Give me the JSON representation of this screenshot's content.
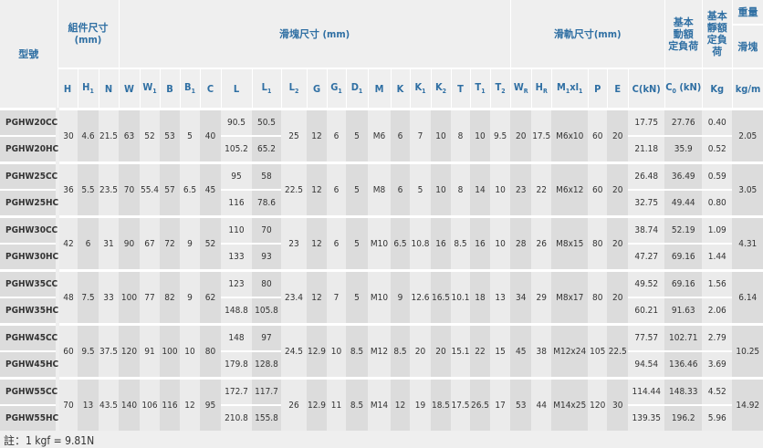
{
  "header": {
    "model": "型號",
    "assembly": [
      "組件尺寸",
      "(mm)"
    ],
    "block": "滑塊尺寸 (mm)",
    "rail": "滑軌尺寸(mm)",
    "dynamic_load": [
      "基本",
      "動額",
      "定負荷"
    ],
    "static_load": [
      "基本",
      "靜額",
      "定負荷"
    ],
    "weight": "重量",
    "weight_block": "滑塊",
    "weight_rail": "滑軌",
    "symbols": [
      [
        "H",
        ""
      ],
      [
        "H",
        "1"
      ],
      [
        "N",
        ""
      ],
      [
        "W",
        ""
      ],
      [
        "W",
        "1"
      ],
      [
        "B",
        ""
      ],
      [
        "B",
        "1"
      ],
      [
        "C",
        ""
      ],
      [
        "L",
        ""
      ],
      [
        "L",
        "1"
      ],
      [
        "L",
        "2"
      ],
      [
        "G",
        ""
      ],
      [
        "G",
        "1"
      ],
      [
        "D",
        "1"
      ],
      [
        "M",
        ""
      ],
      [
        "K",
        ""
      ],
      [
        "K",
        "1"
      ],
      [
        "K",
        "2"
      ],
      [
        "T",
        ""
      ],
      [
        "T",
        "1"
      ],
      [
        "T",
        "2"
      ],
      [
        "W",
        "R"
      ],
      [
        "H",
        "R"
      ],
      [
        "M",
        "1"
      ],
      [
        "P",
        ""
      ],
      [
        "E",
        ""
      ],
      [
        "C(kN)",
        ""
      ],
      [
        "C",
        "0"
      ],
      [
        "Kg",
        ""
      ],
      [
        "kg/m",
        ""
      ]
    ],
    "m1xl1_suffix": "xl",
    "c0_suffix": " (kN)"
  },
  "groups": [
    {
      "models": [
        "PGHW20CC",
        "PGHW20HC"
      ],
      "pre": [
        "30",
        "4.6",
        "21.5",
        "63",
        "52",
        "53",
        "5",
        "40"
      ],
      "L": [
        "90.5",
        "105.2"
      ],
      "L1": [
        "50.5",
        "65.2"
      ],
      "mid": [
        "25",
        "12",
        "6",
        "5",
        "M6",
        "6",
        "7",
        "10",
        "8",
        "10",
        "9.5",
        "20",
        "17.5",
        "M6x10",
        "60",
        "20"
      ],
      "C": [
        "17.75",
        "21.18"
      ],
      "C0": [
        "27.76",
        "35.9"
      ],
      "Kg": [
        "0.40",
        "0.52"
      ],
      "kgm": "2.05"
    },
    {
      "models": [
        "PGHW25CC",
        "PGHW25HC"
      ],
      "pre": [
        "36",
        "5.5",
        "23.5",
        "70",
        "55.4",
        "57",
        "6.5",
        "45"
      ],
      "L": [
        "95",
        "116"
      ],
      "L1": [
        "58",
        "78.6"
      ],
      "mid": [
        "22.5",
        "12",
        "6",
        "5",
        "M8",
        "6",
        "5",
        "10",
        "8",
        "14",
        "10",
        "23",
        "22",
        "M6x12",
        "60",
        "20"
      ],
      "C": [
        "26.48",
        "32.75"
      ],
      "C0": [
        "36.49",
        "49.44"
      ],
      "Kg": [
        "0.59",
        "0.80"
      ],
      "kgm": "3.05"
    },
    {
      "models": [
        "PGHW30CC",
        "PGHW30HC"
      ],
      "pre": [
        "42",
        "6",
        "31",
        "90",
        "67",
        "72",
        "9",
        "52"
      ],
      "L": [
        "110",
        "133"
      ],
      "L1": [
        "70",
        "93"
      ],
      "mid": [
        "23",
        "12",
        "6",
        "5",
        "M10",
        "6.5",
        "10.8",
        "16",
        "8.5",
        "16",
        "10",
        "28",
        "26",
        "M8x15",
        "80",
        "20"
      ],
      "C": [
        "38.74",
        "47.27"
      ],
      "C0": [
        "52.19",
        "69.16"
      ],
      "Kg": [
        "1.09",
        "1.44"
      ],
      "kgm": "4.31"
    },
    {
      "models": [
        "PGHW35CC",
        "PGHW35HC"
      ],
      "pre": [
        "48",
        "7.5",
        "33",
        "100",
        "77",
        "82",
        "9",
        "62"
      ],
      "L": [
        "123",
        "148.8"
      ],
      "L1": [
        "80",
        "105.8"
      ],
      "mid": [
        "23.4",
        "12",
        "7",
        "5",
        "M10",
        "9",
        "12.6",
        "16.5",
        "10.1",
        "18",
        "13",
        "34",
        "29",
        "M8x17",
        "80",
        "20"
      ],
      "C": [
        "49.52",
        "60.21"
      ],
      "C0": [
        "69.16",
        "91.63"
      ],
      "Kg": [
        "1.56",
        "2.06"
      ],
      "kgm": "6.14"
    },
    {
      "models": [
        "PGHW45CC",
        "PGHW45HC"
      ],
      "pre": [
        "60",
        "9.5",
        "37.5",
        "120",
        "91",
        "100",
        "10",
        "80"
      ],
      "L": [
        "148",
        "179.8"
      ],
      "L1": [
        "97",
        "128.8"
      ],
      "mid": [
        "24.5",
        "12.9",
        "10",
        "8.5",
        "M12",
        "8.5",
        "20",
        "20",
        "15.1",
        "22",
        "15",
        "45",
        "38",
        "M12x24",
        "105",
        "22.5"
      ],
      "C": [
        "77.57",
        "94.54"
      ],
      "C0": [
        "102.71",
        "136.46"
      ],
      "Kg": [
        "2.79",
        "3.69"
      ],
      "kgm": "10.25"
    },
    {
      "models": [
        "PGHW55CC",
        "PGHW55HC"
      ],
      "pre": [
        "70",
        "13",
        "43.5",
        "140",
        "106",
        "116",
        "12",
        "95"
      ],
      "L": [
        "172.7",
        "210.8"
      ],
      "L1": [
        "117.7",
        "155.8"
      ],
      "mid": [
        "26",
        "12.9",
        "11",
        "8.5",
        "M14",
        "12",
        "19",
        "18.5",
        "17.5",
        "26.5",
        "17",
        "53",
        "44",
        "M14x25",
        "120",
        "30"
      ],
      "C": [
        "114.44",
        "139.35"
      ],
      "C0": [
        "148.33",
        "196.2"
      ],
      "Kg": [
        "4.52",
        "5.96"
      ],
      "kgm": "14.92"
    }
  ],
  "note": "註：1 kgf = 9.81N",
  "colors": {
    "header_text": "#2f6fa3",
    "dark_col": "#dcdcdc",
    "light_col": "#ebebeb",
    "background": "#efefef"
  }
}
